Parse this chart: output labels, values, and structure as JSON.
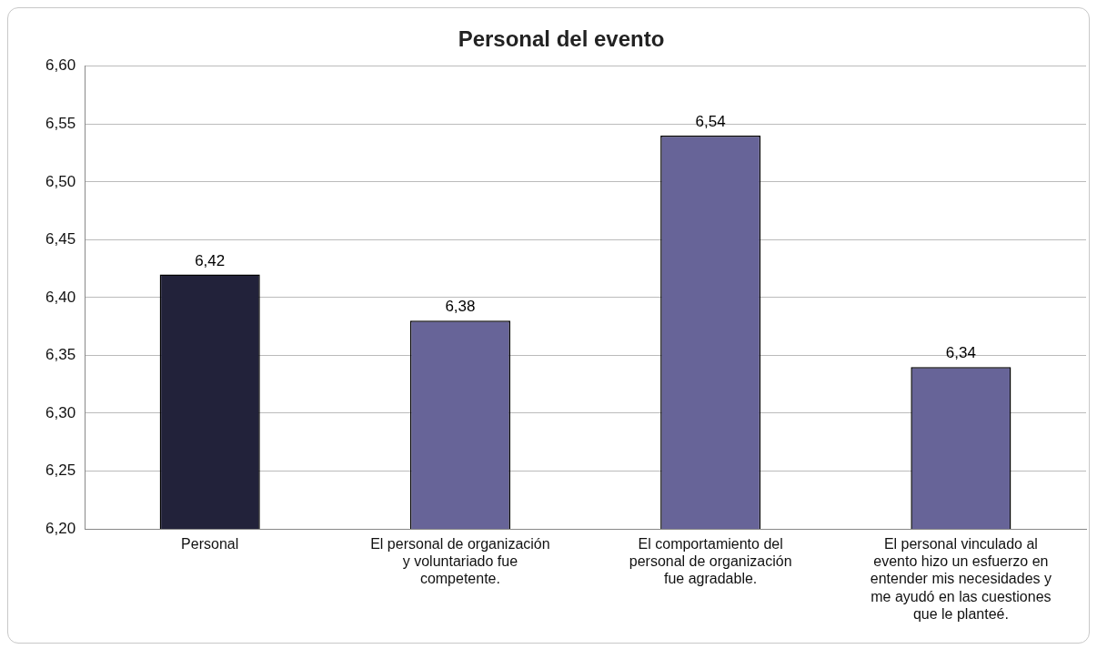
{
  "chart_data": {
    "type": "bar",
    "title": "Personal del evento",
    "categories": [
      "Personal",
      "El personal de organización y voluntariado fue competente.",
      "El comportamiento del personal de organización fue agradable.",
      "El personal vinculado al evento hizo un esfuerzo en entender mis necesidades y me ayudó en las cuestiones que le planteé."
    ],
    "values": [
      6.42,
      6.38,
      6.54,
      6.34
    ],
    "colors": [
      "#22223a",
      "#676498",
      "#676498",
      "#676498"
    ],
    "value_labels": [
      "6,42",
      "6,38",
      "6,54",
      "6,34"
    ],
    "ylim": [
      6.2,
      6.6
    ],
    "yticks": [
      {
        "value": 6.2,
        "label": "6,20"
      },
      {
        "value": 6.25,
        "label": "6,25"
      },
      {
        "value": 6.3,
        "label": "6,30"
      },
      {
        "value": 6.35,
        "label": "6,35"
      },
      {
        "value": 6.4,
        "label": "6,40"
      },
      {
        "value": 6.45,
        "label": "6,45"
      },
      {
        "value": 6.5,
        "label": "6,50"
      },
      {
        "value": 6.55,
        "label": "6,55"
      },
      {
        "value": 6.6,
        "label": "6,60"
      }
    ],
    "grid": "y",
    "legend": false
  }
}
